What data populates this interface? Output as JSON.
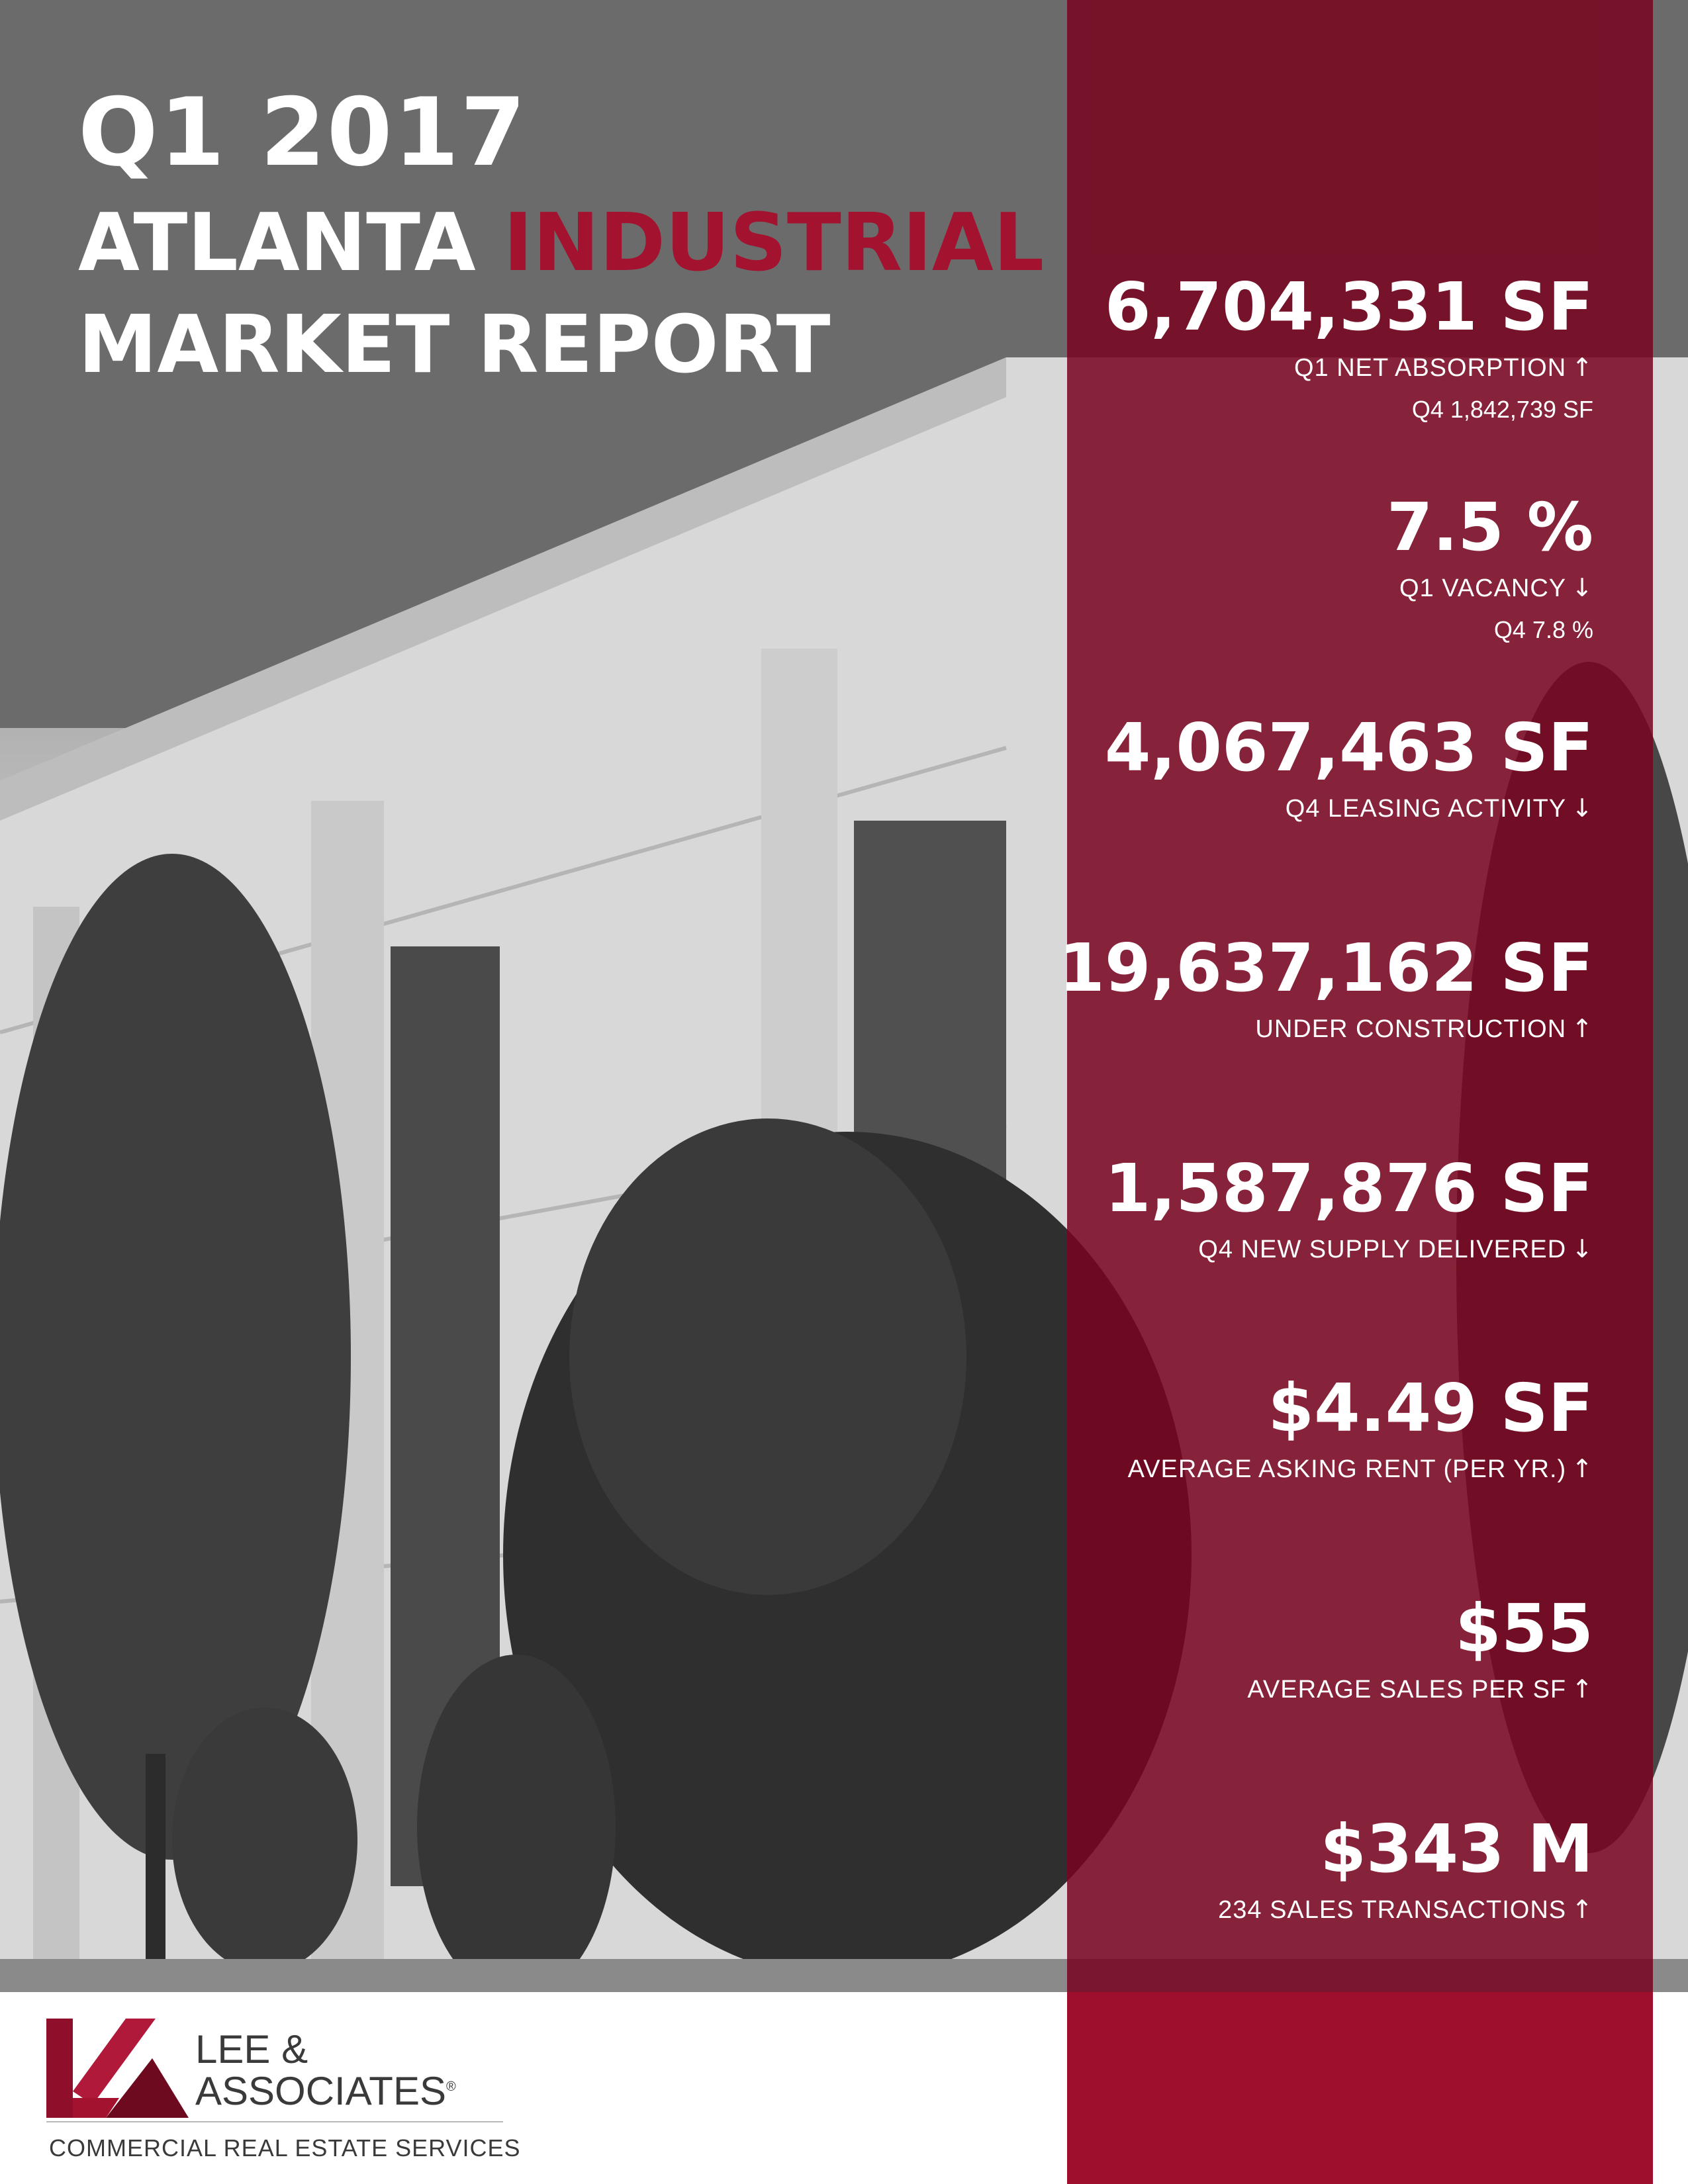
{
  "title": {
    "line1": "Q1 2017",
    "line2_prefix": "ATLANTA ",
    "line2_accent": "INDUSTRIAL",
    "line3": "MARKET REPORT"
  },
  "colors": {
    "accent": "#a3122f",
    "panel": "#7a0420",
    "text": "#ffffff"
  },
  "stats": [
    {
      "value": "6,704,331 SF",
      "label": "Q1 NET ABSORPTION",
      "trend": "up",
      "arrow": "↑",
      "prior": "Q4 1,842,739 SF"
    },
    {
      "value": "7.5 %",
      "label": "Q1 VACANCY",
      "trend": "down",
      "arrow": "↓",
      "prior": "Q4 7.8 %"
    },
    {
      "value": "4,067,463 SF",
      "label": "Q4 LEASING ACTIVITY",
      "trend": "down",
      "arrow": "↓"
    },
    {
      "value": "19,637,162 SF",
      "label": "UNDER CONSTRUCTION",
      "trend": "up",
      "arrow": "↑"
    },
    {
      "value": "1,587,876 SF",
      "label": "Q4 NEW SUPPLY DELIVERED",
      "trend": "down",
      "arrow": "↓"
    },
    {
      "value": "$4.49 SF",
      "label": "AVERAGE ASKING RENT (PER YR.)",
      "trend": "up",
      "arrow": "↑"
    },
    {
      "value": "$55",
      "label": "AVERAGE SALES PER SF",
      "trend": "up",
      "arrow": "↑"
    },
    {
      "value": "$343 M",
      "label": "234 SALES TRANSACTIONS",
      "trend": "up",
      "arrow": "↑"
    }
  ],
  "logo": {
    "name_line1": "LEE &",
    "name_line2": "ASSOCIATES",
    "registered": "®",
    "tagline": "COMMERCIAL REAL ESTATE SERVICES",
    "icon": "lee-associates-logo-mark"
  }
}
